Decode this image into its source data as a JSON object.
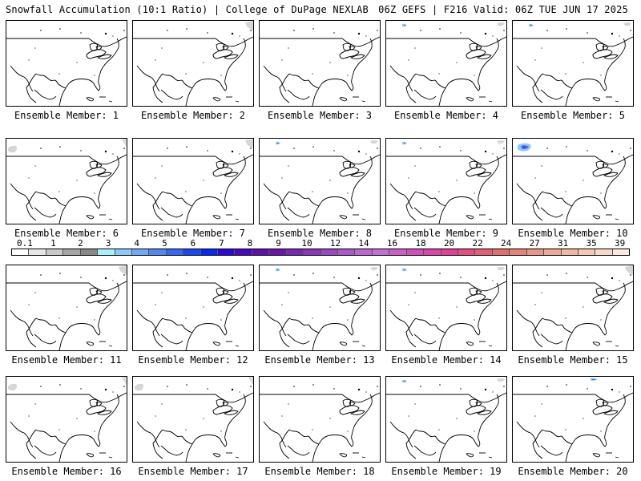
{
  "header": {
    "left_title": "Snowfall Accumulation (10:1 Ratio) | College of DuPage NEXLAB",
    "right_title": "06Z GEFS | F216 Valid: 06Z TUE JUN 17 2025"
  },
  "panels": [
    {
      "label": "Ensemble Member: 1",
      "snow": "none"
    },
    {
      "label": "Ensemble Member: 2",
      "snow": "light-gray-northeast-corner"
    },
    {
      "label": "Ensemble Member: 3",
      "snow": "none"
    },
    {
      "label": "Ensemble Member: 4",
      "snow": "small-blue-northwest"
    },
    {
      "label": "Ensemble Member: 5",
      "snow": "small-blue-northwest"
    },
    {
      "label": "Ensemble Member: 6",
      "snow": "light-gray-northwest"
    },
    {
      "label": "Ensemble Member: 7",
      "snow": "light-gray-northeast-corner"
    },
    {
      "label": "Ensemble Member: 8",
      "snow": "small-blue-northwest"
    },
    {
      "label": "Ensemble Member: 9",
      "snow": "small-blue-northwest"
    },
    {
      "label": "Ensemble Member: 10",
      "snow": "blue-purple-pink-northwest"
    },
    {
      "label": "Ensemble Member: 11",
      "snow": "light-gray-northeast-corner"
    },
    {
      "label": "Ensemble Member: 12",
      "snow": "none"
    },
    {
      "label": "Ensemble Member: 13",
      "snow": "small-blue-northwest"
    },
    {
      "label": "Ensemble Member: 14",
      "snow": "small-blue-northwest"
    },
    {
      "label": "Ensemble Member: 15",
      "snow": "light-gray-northeast-corner"
    },
    {
      "label": "Ensemble Member: 16",
      "snow": "light-gray-northwest"
    },
    {
      "label": "Ensemble Member: 17",
      "snow": "light-gray-northwest"
    },
    {
      "label": "Ensemble Member: 18",
      "snow": "none"
    },
    {
      "label": "Ensemble Member: 19",
      "snow": "small-blue-northwest"
    },
    {
      "label": "Ensemble Member: 20",
      "snow": "small-blue-north-central"
    }
  ],
  "legend": {
    "labels": [
      "0.1",
      "1",
      "2",
      "3",
      "4",
      "5",
      "6",
      "7",
      "8",
      "9",
      "10",
      "12",
      "14",
      "16",
      "18",
      "20",
      "22",
      "24",
      "27",
      "31",
      "35",
      "39"
    ],
    "colors": [
      "#ffffff",
      "#e6e6e6",
      "#c8c8c8",
      "#a6a6a6",
      "#888888",
      "#a8f0f8",
      "#8ec8f8",
      "#72a8f4",
      "#5488f0",
      "#3868f0",
      "#1c48f0",
      "#0828f0",
      "#2a08d8",
      "#4808c0",
      "#5e10a8",
      "#6818a8",
      "#7828b0",
      "#8838b8",
      "#9848c0",
      "#a858c8",
      "#b868d0",
      "#c070d0",
      "#c860c8",
      "#d050b8",
      "#d848a8",
      "#e04098",
      "#e05080",
      "#e06078",
      "#e07070",
      "#e48478",
      "#e89888",
      "#eca898",
      "#f0b8a4",
      "#f4c8b4",
      "#f8d8c8",
      "#fce8dc"
    ]
  }
}
